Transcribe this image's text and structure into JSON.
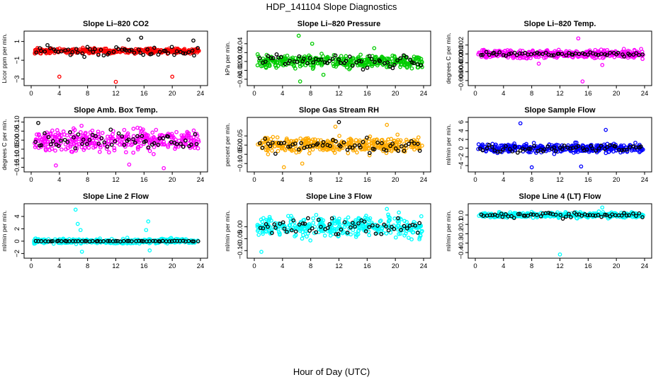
{
  "figure": {
    "title": "HDP_141104  Slope Diagnostics",
    "xlabel": "Hour of Day (UTC)"
  },
  "chart_data": [
    {
      "type": "scatter",
      "title": "Slope Li–820 CO2",
      "ylabel": "Licor ppm per min.",
      "color": "#ff0000",
      "xlim": [
        0,
        24
      ],
      "ylim": [
        -3.4,
        1.8
      ],
      "xticks": [
        0,
        4,
        8,
        12,
        16,
        20,
        24
      ],
      "yticks": [
        -3,
        -1,
        1
      ],
      "ytick_labels": [
        "−3",
        "−1",
        "1"
      ],
      "spread": 0.22,
      "dark_spread": 0.45,
      "outliers": [
        [
          4.0,
          -2.75
        ],
        [
          12.0,
          -3.3
        ],
        [
          20.0,
          -2.75
        ]
      ],
      "dark_outliers": [
        [
          13.8,
          1.2
        ],
        [
          15.6,
          1.4
        ],
        [
          23.0,
          1.1
        ]
      ]
    },
    {
      "type": "scatter",
      "title": "Slope Li–820 Pressure",
      "ylabel": "kPa per min.",
      "color": "#00cc00",
      "xlim": [
        0,
        24
      ],
      "ylim": [
        -0.048,
        0.062
      ],
      "xticks": [
        0,
        4,
        8,
        12,
        16,
        20,
        24
      ],
      "yticks": [
        -0.04,
        -0.02,
        0.0,
        0.02,
        0.04
      ],
      "ytick_labels": [
        "−0.04",
        "−0.02",
        "0.00",
        "0.02",
        "0.04"
      ],
      "spread": 0.012,
      "dark_spread": 0.012,
      "outliers": [
        [
          6.3,
          0.058
        ],
        [
          6.5,
          -0.045
        ],
        [
          8.2,
          0.04
        ],
        [
          9.8,
          -0.03
        ],
        [
          17.0,
          0.03
        ]
      ],
      "dark_outliers": []
    },
    {
      "type": "scatter",
      "title": "Slope Li–820 Temp.",
      "ylabel": "degrees C per min.",
      "color": "#ff00ff",
      "xlim": [
        0,
        24
      ],
      "ylim": [
        -0.0065,
        0.0045
      ],
      "xticks": [
        0,
        4,
        8,
        12,
        16,
        20,
        24
      ],
      "yticks": [
        -0.006,
        -0.004,
        -0.002,
        0.0,
        0.002
      ],
      "ytick_labels": [
        "−0.006",
        "−0.004",
        "−0.002",
        "0.000",
        "0.002"
      ],
      "spread": 0.0008,
      "dark_spread": 0.0004,
      "outliers": [
        [
          15.2,
          -0.0062
        ],
        [
          14.6,
          0.0035
        ],
        [
          9.0,
          -0.0022
        ],
        [
          18.0,
          -0.0025
        ]
      ],
      "dark_outliers": []
    },
    {
      "type": "scatter",
      "title": "Slope Amb. Box Temp.",
      "ylabel": "degrees C per min.",
      "color": "#ff00ff",
      "xlim": [
        0,
        24
      ],
      "ylim": [
        -0.16,
        0.11
      ],
      "xticks": [
        0,
        4,
        8,
        12,
        16,
        20,
        24
      ],
      "yticks": [
        -0.15,
        -0.1,
        -0.05,
        0.0,
        0.05,
        0.1
      ],
      "ytick_labels": [
        "−0.15",
        "−0.10",
        "−0.05",
        "0.00",
        "0.05",
        "0.10"
      ],
      "spread": 0.05,
      "dark_spread": 0.04,
      "outliers": [
        [
          18.8,
          -0.155
        ],
        [
          13.9,
          -0.135
        ],
        [
          3.5,
          -0.14
        ]
      ],
      "dark_outliers": [
        [
          1.0,
          0.095
        ]
      ]
    },
    {
      "type": "scatter",
      "title": "Slope Gas Stream RH",
      "ylabel": "percent per min.",
      "color": "#ffaa00",
      "xlim": [
        0,
        24
      ],
      "ylim": [
        -0.13,
        0.135
      ],
      "xticks": [
        0,
        4,
        8,
        12,
        16,
        20,
        24
      ],
      "yticks": [
        -0.1,
        -0.05,
        0.0,
        0.05
      ],
      "ytick_labels": [
        "−0.10",
        "−0.05",
        "0.00",
        "0.05"
      ],
      "spread": 0.035,
      "dark_spread": 0.03,
      "outliers": [
        [
          4.2,
          -0.12
        ],
        [
          11.5,
          0.1
        ],
        [
          18.8,
          0.11
        ],
        [
          6.8,
          -0.1
        ]
      ],
      "dark_outliers": [
        [
          12.0,
          0.125
        ]
      ]
    },
    {
      "type": "scatter",
      "title": "Slope Sample Flow",
      "ylabel": "ml/min per min.",
      "color": "#0000ff",
      "xlim": [
        0,
        24
      ],
      "ylim": [
        -4.8,
        6.4
      ],
      "xticks": [
        0,
        4,
        8,
        12,
        16,
        20,
        24
      ],
      "yticks": [
        -4,
        -2,
        0,
        2,
        4,
        6
      ],
      "ytick_labels": [
        "−4",
        "−2",
        "0",
        "2",
        "4",
        "6"
      ],
      "spread": 0.9,
      "dark_spread": 0.8,
      "outliers": [
        [
          6.4,
          5.7
        ],
        [
          18.5,
          4.2
        ],
        [
          15.0,
          -4.2
        ],
        [
          8.0,
          -4.4
        ]
      ],
      "dark_outliers": []
    },
    {
      "type": "scatter",
      "title": "Slope Line 2 Flow",
      "ylabel": "ml/min per min.",
      "color": "#00ffff",
      "xlim": [
        0,
        24
      ],
      "ylim": [
        -2.3,
        5.6
      ],
      "xticks": [
        0,
        4,
        8,
        12,
        16,
        20,
        24
      ],
      "yticks": [
        -2,
        0,
        2,
        4
      ],
      "ytick_labels": [
        "−2",
        "0",
        "2",
        "4"
      ],
      "spread": 0.35,
      "dark_spread": 0.05,
      "outliers": [
        [
          6.3,
          5.1
        ],
        [
          6.6,
          2.8
        ],
        [
          7.0,
          1.8
        ],
        [
          16.6,
          3.2
        ],
        [
          16.3,
          1.8
        ],
        [
          7.2,
          -1.7
        ],
        [
          16.8,
          -1.5
        ]
      ],
      "dark_outliers": []
    },
    {
      "type": "scatter",
      "title": "Slope Line 3 Flow",
      "ylabel": "ml/min per min.",
      "color": "#00ffff",
      "xlim": [
        0,
        24
      ],
      "ylim": [
        -0.12,
        0.085
      ],
      "xticks": [
        0,
        4,
        8,
        12,
        16,
        20,
        24
      ],
      "yticks": [
        -0.1,
        -0.05,
        0.0
      ],
      "ytick_labels": [
        "−0.10",
        "−0.05",
        "0.00"
      ],
      "spread": 0.035,
      "dark_spread": 0.03,
      "outliers": [
        [
          18.8,
          0.075
        ],
        [
          1.0,
          -0.105
        ],
        [
          20.5,
          0.06
        ]
      ],
      "dark_outliers": []
    },
    {
      "type": "scatter",
      "title": "Slope Line 4 (LT) Flow",
      "ylabel": "ml/min per min.",
      "color": "#00ffff",
      "xlim": [
        0,
        24
      ],
      "ylim": [
        -0.43,
        0.09
      ],
      "xticks": [
        0,
        4,
        8,
        12,
        16,
        20,
        24
      ],
      "yticks": [
        -0.4,
        -0.3,
        -0.2,
        -0.1,
        0.0
      ],
      "ytick_labels": [
        "−0.4",
        "−0.3",
        "−0.2",
        "−0.1",
        "0.0"
      ],
      "spread": 0.025,
      "dark_spread": 0.025,
      "outliers": [
        [
          12.0,
          -0.42
        ],
        [
          18.0,
          0.08
        ]
      ],
      "dark_outliers": []
    }
  ]
}
